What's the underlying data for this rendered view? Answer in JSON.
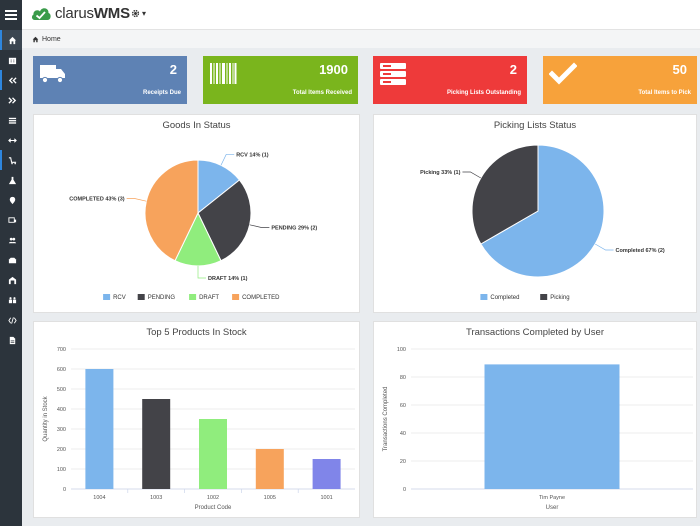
{
  "app": {
    "logo_main": "clarus",
    "logo_accent": "WMS",
    "settings_caret": "▾"
  },
  "breadcrumb": {
    "label": "Home"
  },
  "sidebar": {
    "items": [
      {
        "icon": "home-icon"
      },
      {
        "icon": "building-icon"
      },
      {
        "icon": "inbound-icon"
      },
      {
        "icon": "outbound-icon"
      },
      {
        "icon": "list-icon"
      },
      {
        "icon": "transfer-icon"
      },
      {
        "icon": "cart-icon"
      },
      {
        "icon": "flask-icon"
      },
      {
        "icon": "location-icon"
      },
      {
        "icon": "truck-icon"
      },
      {
        "icon": "users-icon"
      },
      {
        "icon": "inbox-icon"
      },
      {
        "icon": "warehouse-icon"
      },
      {
        "icon": "group-icon"
      },
      {
        "icon": "code-icon"
      },
      {
        "icon": "file-icon"
      }
    ]
  },
  "stats": [
    {
      "value": "2",
      "label": "Receipts Due",
      "color": "#5e82b4",
      "icon": "truck-icon"
    },
    {
      "value": "1900",
      "label": "Total Items Received",
      "color": "#7ab51d",
      "icon": "barcode-icon"
    },
    {
      "value": "2",
      "label": "Picking Lists Outstanding",
      "color": "#ee3a3a",
      "icon": "server-icon"
    },
    {
      "value": "50",
      "label": "Total Items to Pick",
      "color": "#f7a23b",
      "icon": "check-icon"
    }
  ],
  "panels": {
    "goods_title": "Goods In Status",
    "picking_title": "Picking Lists Status",
    "top5_title": "Top 5 Products In Stock",
    "transactions_title": "Transactions Completed by User"
  },
  "chart_data": [
    {
      "type": "pie",
      "title": "Goods In Status",
      "categories": [
        "RCV",
        "PENDING",
        "DRAFT",
        "COMPLETED"
      ],
      "values": [
        1,
        2,
        1,
        3
      ],
      "data_labels": [
        "RCV 14% (1)",
        "PENDING 29% (2)",
        "DRAFT 14% (1)",
        "COMPLETED 43% (3)"
      ],
      "colors": [
        "#7cb5ec",
        "#434348",
        "#90ed7d",
        "#f7a35c"
      ],
      "legend": "bottom"
    },
    {
      "type": "pie",
      "title": "Picking Lists Status",
      "categories": [
        "Completed",
        "Picking"
      ],
      "values": [
        2,
        1
      ],
      "data_labels": [
        "Completed 67% (2)",
        "Picking 33% (1)"
      ],
      "colors": [
        "#7cb5ec",
        "#434348"
      ],
      "legend": "bottom"
    },
    {
      "type": "bar",
      "title": "Top 5 Products In Stock",
      "categories": [
        "1004",
        "1003",
        "1002",
        "1005",
        "1001"
      ],
      "values": [
        600,
        450,
        350,
        200,
        150
      ],
      "colors": [
        "#7cb5ec",
        "#434348",
        "#90ed7d",
        "#f7a35c",
        "#8085e9"
      ],
      "xlabel": "Product Code",
      "ylabel": "Quantity in Stock",
      "ylim": [
        0,
        700
      ],
      "yticks": [
        "0",
        "100",
        "200",
        "300",
        "400",
        "500",
        "600",
        "700"
      ],
      "grid": true
    },
    {
      "type": "bar",
      "title": "Transactions Completed by User",
      "categories": [
        "Tim Payne"
      ],
      "values": [
        89
      ],
      "colors": [
        "#7cb5ec"
      ],
      "xlabel": "User",
      "ylabel": "Transactions Completed",
      "ylim": [
        0,
        100
      ],
      "yticks": [
        "0",
        "20",
        "40",
        "60",
        "80",
        "100"
      ],
      "grid": true
    }
  ]
}
